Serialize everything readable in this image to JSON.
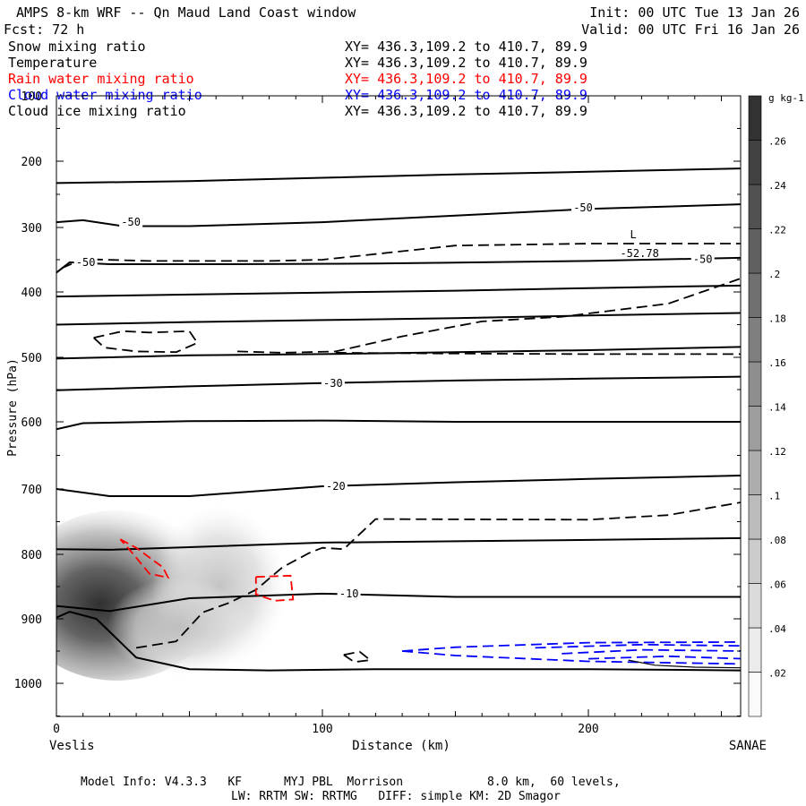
{
  "header": {
    "title": "AMPS 8-km WRF -- Qn Maud Land Coast window",
    "init": "Init: 00 UTC Tue 13 Jan 26",
    "fcst": "Fcst:   72 h",
    "valid": "Valid: 00 UTC Fri 16 Jan 26"
  },
  "fields": [
    {
      "label": "Snow mixing ratio",
      "xy": "XY= 436.3,109.2 to 410.7, 89.9",
      "color": "#000000"
    },
    {
      "label": "Temperature",
      "xy": "XY= 436.3,109.2 to 410.7, 89.9",
      "color": "#000000"
    },
    {
      "label": "Rain water mixing ratio",
      "xy": "XY= 436.3,109.2 to 410.7, 89.9",
      "color": "#ff0000"
    },
    {
      "label": "Cloud water mixing ratio",
      "xy": "XY= 436.3,109.2 to 410.7, 89.9",
      "color": "#0000ff"
    },
    {
      "label": "Cloud ice mixing ratio",
      "xy": "XY= 436.3,109.2 to 410.7, 89.9",
      "color": "#000000"
    }
  ],
  "chart_data": {
    "type": "cross-section",
    "xlabel": "Distance (km)",
    "ylabel": "Pressure (hPa)",
    "xlim": [
      0,
      258
    ],
    "ylim": [
      1050,
      100
    ],
    "x_ticks": [
      0,
      100,
      200
    ],
    "y_ticks": [
      100,
      200,
      300,
      400,
      500,
      600,
      700,
      800,
      900,
      1000
    ],
    "x_start_label": "Veslis",
    "x_end_label": "SANAE",
    "colorbar": {
      "unit": "g kg-1",
      "levels": [
        0.02,
        0.04,
        0.06,
        0.08,
        0.1,
        0.12,
        0.14,
        0.16,
        0.18,
        0.2,
        0.22,
        0.24,
        0.26
      ],
      "tick_labels": [
        ".02",
        ".04",
        ".06",
        ".08",
        ".1",
        ".12",
        ".14",
        ".16",
        ".18",
        ".2",
        ".22",
        ".24",
        ".26"
      ],
      "max": 0.28
    },
    "isotherm_labels": [
      {
        "text": "-50",
        "x": 28,
        "p": 292
      },
      {
        "text": "-50",
        "x": 198,
        "p": 270
      },
      {
        "text": "-50",
        "x": 243,
        "p": 349
      },
      {
        "text": "-50",
        "x": 11,
        "p": 354
      },
      {
        "text": "-30",
        "x": 104,
        "p": 540
      },
      {
        "text": "-20",
        "x": 105,
        "p": 696
      },
      {
        "text": "-10",
        "x": 110,
        "p": 861
      }
    ],
    "isotherms": [
      {
        "x": [
          0,
          50,
          100,
          150,
          200,
          258
        ],
        "p": [
          233,
          230,
          225,
          220,
          216,
          211
        ]
      },
      {
        "x": [
          0,
          10,
          25,
          50,
          100,
          150,
          200,
          258
        ],
        "p": [
          292,
          289,
          298,
          298,
          292,
          282,
          272,
          265
        ]
      },
      {
        "x": [
          0,
          5,
          20,
          60,
          120,
          200,
          258
        ],
        "p": [
          370,
          354,
          357,
          357,
          356,
          352,
          347
        ]
      },
      {
        "x": [
          0,
          50,
          100,
          150,
          200,
          258
        ],
        "p": [
          407,
          404,
          401,
          398,
          394,
          390
        ]
      },
      {
        "x": [
          0,
          50,
          100,
          150,
          200,
          258
        ],
        "p": [
          450,
          446,
          443,
          440,
          436,
          432
        ]
      },
      {
        "x": [
          0,
          50,
          100,
          150,
          200,
          258
        ],
        "p": [
          502,
          497,
          495,
          492,
          489,
          484
        ]
      },
      {
        "x": [
          0,
          50,
          100,
          150,
          200,
          258
        ],
        "p": [
          551,
          545,
          540,
          536,
          533,
          530
        ]
      },
      {
        "x": [
          0,
          10,
          50,
          100,
          150,
          200,
          258
        ],
        "p": [
          611,
          602,
          599,
          598,
          600,
          600,
          600
        ]
      },
      {
        "x": [
          0,
          20,
          50,
          100,
          150,
          200,
          258
        ],
        "p": [
          700,
          711,
          711,
          696,
          690,
          685,
          680
        ]
      },
      {
        "x": [
          0,
          20,
          50,
          100,
          150,
          200,
          258
        ],
        "p": [
          792,
          793,
          789,
          782,
          780,
          778,
          775
        ]
      },
      {
        "x": [
          0,
          20,
          50,
          100,
          150,
          200,
          258
        ],
        "p": [
          880,
          888,
          868,
          861,
          866,
          866,
          866
        ]
      },
      {
        "x": [
          0,
          5,
          15,
          30,
          50,
          80,
          120,
          200,
          258
        ],
        "p": [
          898,
          889,
          900,
          960,
          978,
          980,
          978,
          978,
          980
        ]
      }
    ],
    "dashed_black": [
      {
        "x": [
          2,
          10,
          35,
          80,
          100,
          150,
          200,
          258
        ],
        "p": [
          363,
          349,
          352,
          352,
          350,
          328,
          325,
          325
        ]
      },
      {
        "x": [
          68,
          85,
          105,
          130,
          160,
          190,
          230,
          258
        ],
        "p": [
          491,
          493,
          491,
          468,
          445,
          438,
          418,
          378
        ]
      },
      {
        "x": [
          105,
          140,
          200,
          258
        ],
        "p": [
          493,
          494,
          495,
          495
        ]
      },
      {
        "x": [
          14,
          25,
          35,
          50,
          53,
          45,
          30,
          18,
          14
        ],
        "p": [
          470,
          460,
          462,
          460,
          478,
          492,
          491,
          485,
          470
        ]
      },
      {
        "x": [
          30,
          45,
          55,
          65,
          75,
          85,
          95,
          100,
          108,
          120,
          200,
          230,
          258
        ],
        "p": [
          945,
          935,
          890,
          875,
          855,
          820,
          798,
          790,
          792,
          746,
          747,
          740,
          720
        ]
      },
      {
        "x": [
          108,
          114,
          118,
          112,
          108
        ],
        "p": [
          956,
          951,
          964,
          967,
          956
        ]
      }
    ],
    "rain": [
      {
        "x": [
          24,
          30,
          40,
          42,
          35,
          29,
          24
        ],
        "p": [
          777,
          790,
          820,
          836,
          830,
          800,
          777
        ]
      },
      {
        "x": [
          75,
          88,
          89,
          82,
          75,
          75
        ],
        "p": [
          835,
          833,
          870,
          872,
          862,
          835
        ]
      }
    ],
    "cloud_water": [
      {
        "x": [
          130,
          150,
          200,
          258
        ],
        "p": [
          950,
          944,
          937,
          936
        ]
      },
      {
        "x": [
          130,
          150,
          200,
          258
        ],
        "p": [
          950,
          957,
          966,
          970
        ]
      },
      {
        "x": [
          180,
          220,
          258
        ],
        "p": [
          945,
          940,
          942
        ]
      },
      {
        "x": [
          190,
          220,
          258
        ],
        "p": [
          954,
          948,
          950
        ]
      },
      {
        "x": [
          200,
          230,
          258
        ],
        "p": [
          962,
          958,
          962
        ]
      }
    ],
    "black_small": [
      {
        "x": [
          215,
          225,
          240,
          258
        ],
        "p": [
          964,
          972,
          975,
          976
        ]
      }
    ],
    "low_label": {
      "letter": "L",
      "value": "-52.78",
      "x": 218,
      "p": 322
    }
  },
  "model_info": {
    "line1": "Model Info: V4.3.3   KF      MYJ PBL  Morrison            8.0 km,  60 levels,",
    "line2": "LW: RRTM SW: RRTMG   DIFF: simple KM: 2D Smagor"
  }
}
